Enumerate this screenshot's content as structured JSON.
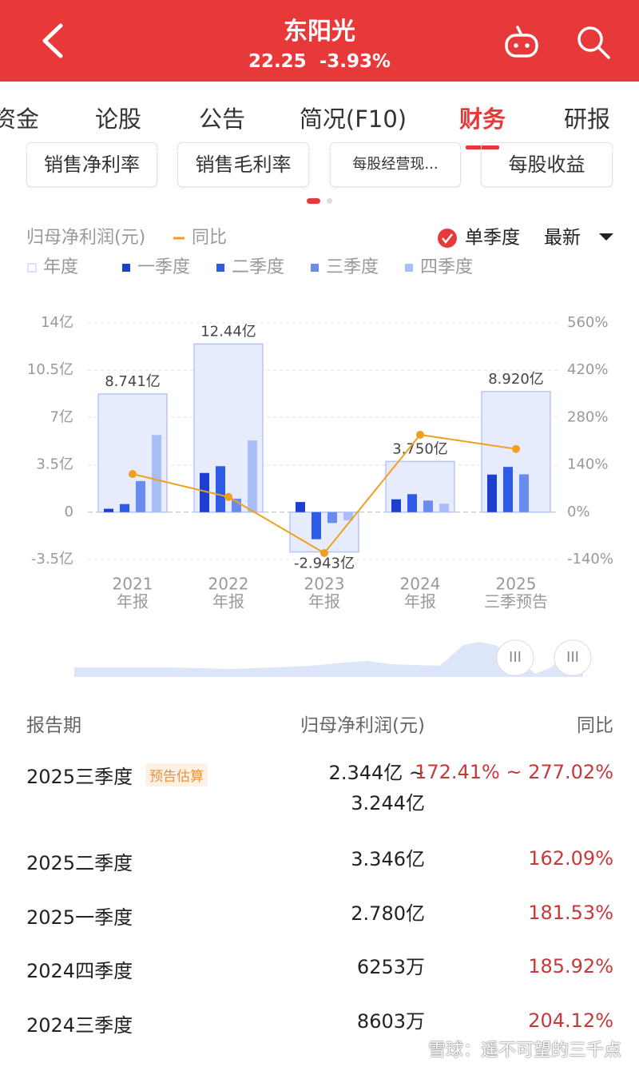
{
  "header": {
    "title": "东阳光",
    "price": "22.25",
    "change": "-3.93%"
  },
  "tabs": [
    "资金",
    "论股",
    "公告",
    "简况(F10)",
    "财务",
    "研报"
  ],
  "active_tab": 4,
  "metric_buttons": [
    "销售净利率",
    "销售毛利率",
    "每股经营现...",
    "每股收益"
  ],
  "controls": {
    "single_quarter": "单季度",
    "period": "最新"
  },
  "chart_data": {
    "type": "bar",
    "y_label": "归母净利润(元)",
    "categories": [
      [
        "2021",
        "年报"
      ],
      [
        "2022",
        "年报"
      ],
      [
        "2023",
        "年报"
      ],
      [
        "2024",
        "年报"
      ],
      [
        "2025",
        "三季预告"
      ]
    ],
    "totals": {
      "name": "年度",
      "color": "#e7ecfc",
      "border": "#b7c5f3",
      "values": [
        8.741,
        12.44,
        -2.943,
        3.75,
        8.92
      ],
      "value_labels": [
        "8.741亿",
        "12.44亿",
        "-2.943亿",
        "3.750亿",
        "8.920亿"
      ]
    },
    "series": [
      {
        "name": "一季度",
        "type": "bar",
        "color": "#1c3fd0",
        "values": [
          0.25,
          2.9,
          0.75,
          0.95,
          2.78
        ]
      },
      {
        "name": "二季度",
        "type": "bar",
        "color": "#2e5be6",
        "values": [
          0.6,
          3.4,
          -2.0,
          1.33,
          3.346
        ]
      },
      {
        "name": "三季度",
        "type": "bar",
        "color": "#6a8cee",
        "values": [
          2.3,
          1.0,
          -0.8,
          0.86,
          2.8
        ]
      },
      {
        "name": "四季度",
        "type": "bar",
        "color": "#a9bdf6",
        "values": [
          5.7,
          5.3,
          -0.6,
          0.6253,
          null
        ]
      },
      {
        "name": "同比",
        "type": "line",
        "axis": "y2",
        "color": "#f0a01e",
        "values": [
          113,
          45,
          -121,
          229,
          187
        ]
      }
    ],
    "ylim": [
      -3.5,
      14
    ],
    "yticks": [
      {
        "value": -3.5,
        "label": "-3.5亿"
      },
      0,
      {
        "value": 3.5,
        "label": "3.5亿"
      },
      {
        "value": 7,
        "label": "7亿"
      },
      {
        "value": 10.5,
        "label": "10.5亿"
      },
      {
        "value": 14,
        "label": "14亿"
      }
    ],
    "y2lim": [
      -140,
      560
    ],
    "y2ticks": [
      {
        "value": -140,
        "label": "-140%"
      },
      {
        "value": 0,
        "label": "0%"
      },
      {
        "value": 140,
        "label": "140%"
      },
      {
        "value": 280,
        "label": "280%"
      },
      {
        "value": 420,
        "label": "420%"
      },
      {
        "value": 560,
        "label": "560%"
      }
    ],
    "grid": true
  },
  "table": {
    "headers": [
      "报告期",
      "归母净利润(元)",
      "同比"
    ],
    "rows": [
      {
        "period": "2025三季度",
        "tag": "预告估算",
        "profit": "2.344亿 ~ 3.244亿",
        "yoy": "172.41% ~ 277.02%"
      },
      {
        "period": "2025二季度",
        "profit": "3.346亿",
        "yoy": "162.09%"
      },
      {
        "period": "2025一季度",
        "profit": "2.780亿",
        "yoy": "181.53%"
      },
      {
        "period": "2024四季度",
        "profit": "6253万",
        "yoy": "185.92%"
      },
      {
        "period": "2024三季度",
        "profit": "8603万",
        "yoy": "204.12%"
      }
    ]
  },
  "watermark": "雪球：遥不可望的三千点"
}
